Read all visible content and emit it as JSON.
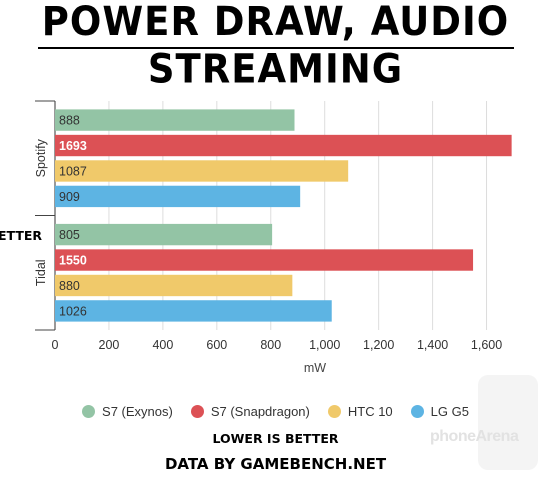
{
  "header": {
    "title": "POWER DRAW, AUDIO STREAMING"
  },
  "chart_data": {
    "type": "bar",
    "orientation": "horizontal",
    "categories": [
      "Spotify",
      "Tidal"
    ],
    "series": [
      {
        "name": "S7 (Exynos)",
        "color": "#93c4a5",
        "values": [
          888,
          805
        ]
      },
      {
        "name": "S7 (Snapdragon)",
        "color": "#dc5155",
        "values": [
          1693,
          1550
        ]
      },
      {
        "name": "HTC 10",
        "color": "#f0c96a",
        "values": [
          1087,
          880
        ]
      },
      {
        "name": "LG G5",
        "color": "#5db4e3",
        "values": [
          909,
          1026
        ]
      }
    ],
    "xlabel": "mW",
    "xlim": [
      0,
      1750
    ],
    "xticks": [
      0,
      200,
      400,
      600,
      800,
      1000,
      1200,
      1400,
      1600
    ],
    "xtick_labels": [
      "0",
      "200",
      "400",
      "600",
      "800",
      "1,000",
      "1,200",
      "1,400",
      "1,600"
    ],
    "grid": true,
    "legend_position": "bottom"
  },
  "footer": {
    "lower_note": "LOWER IS BETTER",
    "source": "DATA BY GAMEBENCH.NET",
    "side_note": "ETTER"
  },
  "watermark": {
    "text": "phoneArena"
  }
}
